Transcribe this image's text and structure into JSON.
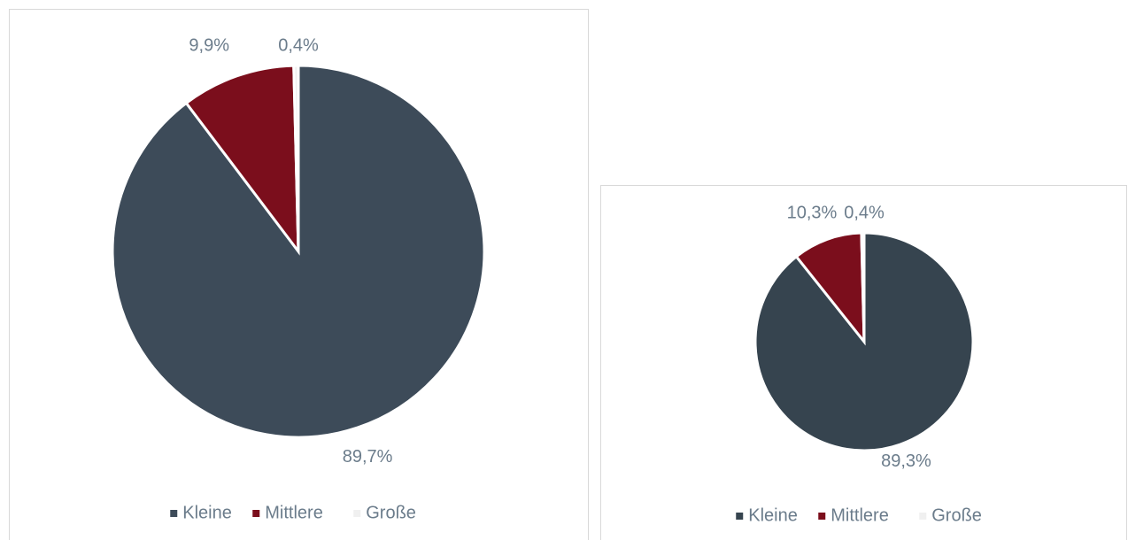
{
  "chart_data": [
    {
      "type": "pie",
      "categories": [
        "Kleine",
        "Mittlere",
        "Große"
      ],
      "values": [
        89.7,
        9.9,
        0.4
      ],
      "value_labels": [
        "89,7%",
        "9,9%",
        "0,4%"
      ],
      "colors": [
        "#3d4b59",
        "#7b0e1c",
        "#f0f0f0"
      ]
    },
    {
      "type": "pie",
      "categories": [
        "Kleine",
        "Mittlere",
        "Große"
      ],
      "values": [
        89.3,
        10.3,
        0.4
      ],
      "value_labels": [
        "89,3%",
        "10,3%",
        "0,4%"
      ],
      "colors": [
        "#36444f",
        "#7b0e1c",
        "#f0f0f0"
      ]
    }
  ]
}
